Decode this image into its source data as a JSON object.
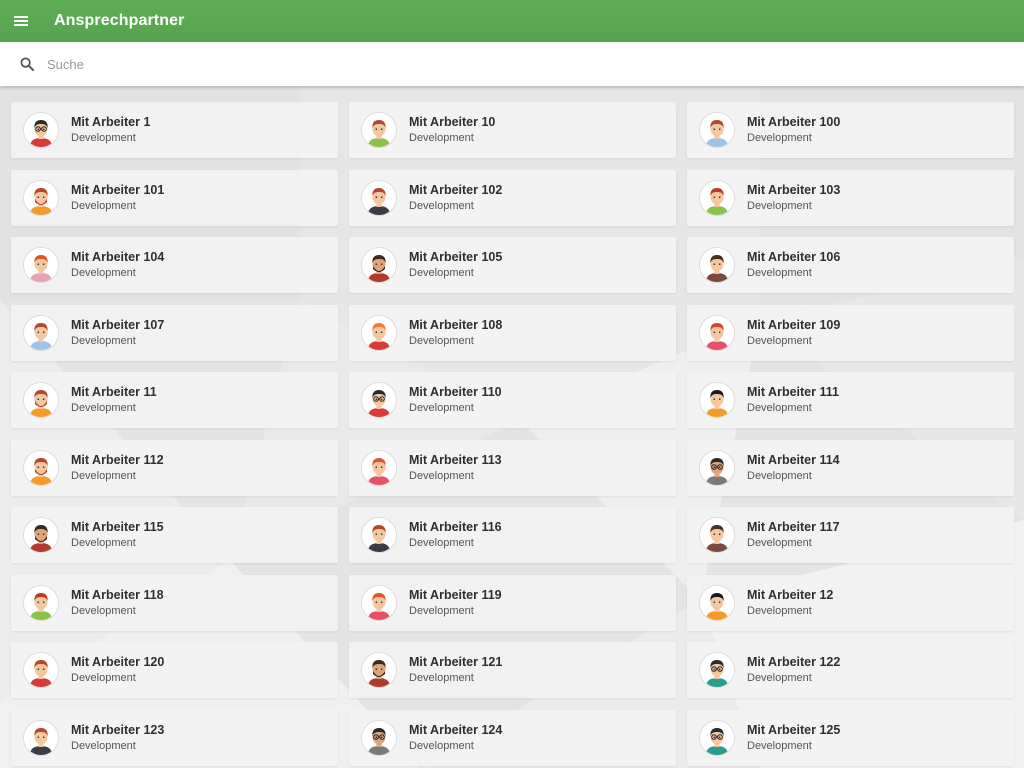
{
  "appbar": {
    "title": "Ansprechpartner",
    "menu_icon": "menu-icon"
  },
  "search": {
    "placeholder": "Suche",
    "value": "",
    "icon": "search-icon"
  },
  "colors": {
    "appbar": "#5aa952",
    "card": "#f3f3f3",
    "background": "#e6e6e6"
  },
  "contacts": [
    {
      "name": "Mit Arbeiter 1",
      "department": "Development",
      "avatar": {
        "hair": "#2b2b2b",
        "shirt": "#d93a3a",
        "beard": false,
        "glasses": true,
        "skin": "#f4c7a1"
      }
    },
    {
      "name": "Mit Arbeiter 10",
      "department": "Development",
      "avatar": {
        "hair": "#b5472c",
        "shirt": "#8bc34a",
        "beard": false,
        "glasses": false,
        "skin": "#f4c7a1"
      }
    },
    {
      "name": "Mit Arbeiter 100",
      "department": "Development",
      "avatar": {
        "hair": "#b5472c",
        "shirt": "#9ec3e6",
        "beard": false,
        "glasses": false,
        "skin": "#f4c7a1"
      }
    },
    {
      "name": "Mit Arbeiter 101",
      "department": "Development",
      "avatar": {
        "hair": "#b5472c",
        "shirt": "#f39c2a",
        "beard": true,
        "glasses": false,
        "skin": "#f4c7a1"
      }
    },
    {
      "name": "Mit Arbeiter 102",
      "department": "Development",
      "avatar": {
        "hair": "#b5472c",
        "shirt": "#3b3b4a",
        "beard": false,
        "glasses": false,
        "skin": "#f4c7a1"
      }
    },
    {
      "name": "Mit Arbeiter 103",
      "department": "Development",
      "avatar": {
        "hair": "#c0392b",
        "shirt": "#8bc34a",
        "beard": false,
        "glasses": false,
        "skin": "#f4c7a1"
      }
    },
    {
      "name": "Mit Arbeiter 104",
      "department": "Development",
      "avatar": {
        "hair": "#e0552b",
        "shirt": "#e8a0b4",
        "beard": false,
        "glasses": false,
        "skin": "#f4c7a1"
      }
    },
    {
      "name": "Mit Arbeiter 105",
      "department": "Development",
      "avatar": {
        "hair": "#3a2a20",
        "shirt": "#b03a2e",
        "beard": true,
        "glasses": false,
        "skin": "#e0a47a"
      }
    },
    {
      "name": "Mit Arbeiter 106",
      "department": "Development",
      "avatar": {
        "hair": "#4a2f22",
        "shirt": "#7a4a3a",
        "beard": false,
        "glasses": false,
        "skin": "#f4c7a1"
      }
    },
    {
      "name": "Mit Arbeiter 107",
      "department": "Development",
      "avatar": {
        "hair": "#b5472c",
        "shirt": "#9ec3e6",
        "beard": false,
        "glasses": false,
        "skin": "#f4c7a1"
      }
    },
    {
      "name": "Mit Arbeiter 108",
      "department": "Development",
      "avatar": {
        "hair": "#f07a3a",
        "shirt": "#d93a3a",
        "beard": false,
        "glasses": false,
        "skin": "#f4c7a1"
      }
    },
    {
      "name": "Mit Arbeiter 109",
      "department": "Development",
      "avatar": {
        "hair": "#d9452b",
        "shirt": "#e8506a",
        "beard": false,
        "glasses": false,
        "skin": "#f4c7a1"
      }
    },
    {
      "name": "Mit Arbeiter 11",
      "department": "Development",
      "avatar": {
        "hair": "#b5472c",
        "shirt": "#f39c2a",
        "beard": true,
        "glasses": false,
        "skin": "#f4c7a1"
      }
    },
    {
      "name": "Mit Arbeiter 110",
      "department": "Development",
      "avatar": {
        "hair": "#2b2b2b",
        "shirt": "#d93a3a",
        "beard": false,
        "glasses": true,
        "skin": "#f4c7a1"
      }
    },
    {
      "name": "Mit Arbeiter 111",
      "department": "Development",
      "avatar": {
        "hair": "#1f1a18",
        "shirt": "#f39c2a",
        "beard": false,
        "glasses": false,
        "skin": "#f4c7a1"
      }
    },
    {
      "name": "Mit Arbeiter 112",
      "department": "Development",
      "avatar": {
        "hair": "#b5472c",
        "shirt": "#f39c2a",
        "beard": true,
        "glasses": false,
        "skin": "#f4c7a1"
      }
    },
    {
      "name": "Mit Arbeiter 113",
      "department": "Development",
      "avatar": {
        "hair": "#e0552b",
        "shirt": "#e8506a",
        "beard": false,
        "glasses": false,
        "skin": "#f4c7a1"
      }
    },
    {
      "name": "Mit Arbeiter 114",
      "department": "Development",
      "avatar": {
        "hair": "#2b2b2b",
        "shirt": "#7a7a7a",
        "beard": false,
        "glasses": true,
        "skin": "#e0a47a"
      }
    },
    {
      "name": "Mit Arbeiter 115",
      "department": "Development",
      "avatar": {
        "hair": "#3a2a20",
        "shirt": "#b03a2e",
        "beard": true,
        "glasses": false,
        "skin": "#e0a47a"
      }
    },
    {
      "name": "Mit Arbeiter 116",
      "department": "Development",
      "avatar": {
        "hair": "#b5472c",
        "shirt": "#3b3b4a",
        "beard": false,
        "glasses": false,
        "skin": "#f4c7a1"
      }
    },
    {
      "name": "Mit Arbeiter 117",
      "department": "Development",
      "avatar": {
        "hair": "#4a2f22",
        "shirt": "#7a4a3a",
        "beard": false,
        "glasses": false,
        "skin": "#f4c7a1"
      }
    },
    {
      "name": "Mit Arbeiter 118",
      "department": "Development",
      "avatar": {
        "hair": "#c0392b",
        "shirt": "#8bc34a",
        "beard": false,
        "glasses": false,
        "skin": "#f4c7a1"
      }
    },
    {
      "name": "Mit Arbeiter 119",
      "department": "Development",
      "avatar": {
        "hair": "#e0552b",
        "shirt": "#e8506a",
        "beard": false,
        "glasses": false,
        "skin": "#f4c7a1"
      }
    },
    {
      "name": "Mit Arbeiter 12",
      "department": "Development",
      "avatar": {
        "hair": "#1f1a18",
        "shirt": "#f39c2a",
        "beard": false,
        "glasses": false,
        "skin": "#f4c7a1"
      }
    },
    {
      "name": "Mit Arbeiter 120",
      "department": "Development",
      "avatar": {
        "hair": "#b5472c",
        "shirt": "#d93a3a",
        "beard": false,
        "glasses": false,
        "skin": "#f4c7a1"
      }
    },
    {
      "name": "Mit Arbeiter 121",
      "department": "Development",
      "avatar": {
        "hair": "#3a2a20",
        "shirt": "#b03a2e",
        "beard": true,
        "glasses": false,
        "skin": "#e0a47a"
      }
    },
    {
      "name": "Mit Arbeiter 122",
      "department": "Development",
      "avatar": {
        "hair": "#2b2b2b",
        "shirt": "#2a9d8f",
        "beard": false,
        "glasses": true,
        "skin": "#f4c7a1"
      }
    },
    {
      "name": "Mit Arbeiter 123",
      "department": "Development",
      "avatar": {
        "hair": "#b5472c",
        "shirt": "#3b3b4a",
        "beard": false,
        "glasses": false,
        "skin": "#f4c7a1"
      }
    },
    {
      "name": "Mit Arbeiter 124",
      "department": "Development",
      "avatar": {
        "hair": "#2b2b2b",
        "shirt": "#7a7a7a",
        "beard": false,
        "glasses": true,
        "skin": "#e0a47a"
      }
    },
    {
      "name": "Mit Arbeiter 125",
      "department": "Development",
      "avatar": {
        "hair": "#2b2b2b",
        "shirt": "#2a9d8f",
        "beard": false,
        "glasses": true,
        "skin": "#f4c7a1"
      }
    }
  ]
}
